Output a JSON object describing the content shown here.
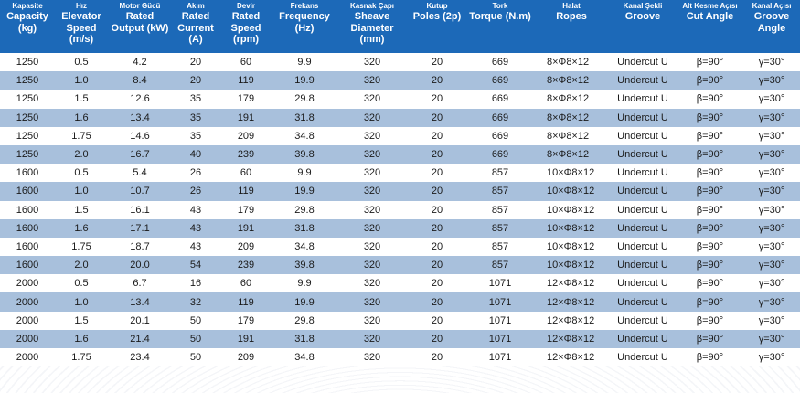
{
  "header": [
    {
      "tr": "Kapasite",
      "en": "Capacity (kg)"
    },
    {
      "tr": "Hız",
      "en": "Elevator Speed (m/s)"
    },
    {
      "tr": "Motor Gücü",
      "en": "Rated Output (kW)"
    },
    {
      "tr": "Akım",
      "en": "Rated Current (A)"
    },
    {
      "tr": "Devir",
      "en": "Rated Speed (rpm)"
    },
    {
      "tr": "Frekans",
      "en": "Frequency (Hz)"
    },
    {
      "tr": "Kasnak Çapı",
      "en": "Sheave Diameter (mm)"
    },
    {
      "tr": "Kutup",
      "en": "Poles (2p)"
    },
    {
      "tr": "Tork",
      "en": "Torque (N.m)"
    },
    {
      "tr": "Halat",
      "en": "Ropes"
    },
    {
      "tr": "Kanal Şekli",
      "en": "Groove"
    },
    {
      "tr": "Alt Kesme Açısı",
      "en": "Cut Angle"
    },
    {
      "tr": "Kanal Açısı",
      "en": "Groove Angle"
    }
  ],
  "rows": [
    [
      "1250",
      "0.5",
      "4.2",
      "20",
      "60",
      "9.9",
      "320",
      "20",
      "669",
      "8×Φ8×12",
      "Undercut U",
      "β=90°",
      "γ=30°"
    ],
    [
      "1250",
      "1.0",
      "8.4",
      "20",
      "119",
      "19.9",
      "320",
      "20",
      "669",
      "8×Φ8×12",
      "Undercut U",
      "β=90°",
      "γ=30°"
    ],
    [
      "1250",
      "1.5",
      "12.6",
      "35",
      "179",
      "29.8",
      "320",
      "20",
      "669",
      "8×Φ8×12",
      "Undercut U",
      "β=90°",
      "γ=30°"
    ],
    [
      "1250",
      "1.6",
      "13.4",
      "35",
      "191",
      "31.8",
      "320",
      "20",
      "669",
      "8×Φ8×12",
      "Undercut U",
      "β=90°",
      "γ=30°"
    ],
    [
      "1250",
      "1.75",
      "14.6",
      "35",
      "209",
      "34.8",
      "320",
      "20",
      "669",
      "8×Φ8×12",
      "Undercut U",
      "β=90°",
      "γ=30°"
    ],
    [
      "1250",
      "2.0",
      "16.7",
      "40",
      "239",
      "39.8",
      "320",
      "20",
      "669",
      "8×Φ8×12",
      "Undercut U",
      "β=90°",
      "γ=30°"
    ],
    [
      "1600",
      "0.5",
      "5.4",
      "26",
      "60",
      "9.9",
      "320",
      "20",
      "857",
      "10×Φ8×12",
      "Undercut U",
      "β=90°",
      "γ=30°"
    ],
    [
      "1600",
      "1.0",
      "10.7",
      "26",
      "119",
      "19.9",
      "320",
      "20",
      "857",
      "10×Φ8×12",
      "Undercut U",
      "β=90°",
      "γ=30°"
    ],
    [
      "1600",
      "1.5",
      "16.1",
      "43",
      "179",
      "29.8",
      "320",
      "20",
      "857",
      "10×Φ8×12",
      "Undercut U",
      "β=90°",
      "γ=30°"
    ],
    [
      "1600",
      "1.6",
      "17.1",
      "43",
      "191",
      "31.8",
      "320",
      "20",
      "857",
      "10×Φ8×12",
      "Undercut U",
      "β=90°",
      "γ=30°"
    ],
    [
      "1600",
      "1.75",
      "18.7",
      "43",
      "209",
      "34.8",
      "320",
      "20",
      "857",
      "10×Φ8×12",
      "Undercut U",
      "β=90°",
      "γ=30°"
    ],
    [
      "1600",
      "2.0",
      "20.0",
      "54",
      "239",
      "39.8",
      "320",
      "20",
      "857",
      "10×Φ8×12",
      "Undercut U",
      "β=90°",
      "γ=30°"
    ],
    [
      "2000",
      "0.5",
      "6.7",
      "16",
      "60",
      "9.9",
      "320",
      "20",
      "1071",
      "12×Φ8×12",
      "Undercut U",
      "β=90°",
      "γ=30°"
    ],
    [
      "2000",
      "1.0",
      "13.4",
      "32",
      "119",
      "19.9",
      "320",
      "20",
      "1071",
      "12×Φ8×12",
      "Undercut U",
      "β=90°",
      "γ=30°"
    ],
    [
      "2000",
      "1.5",
      "20.1",
      "50",
      "179",
      "29.8",
      "320",
      "20",
      "1071",
      "12×Φ8×12",
      "Undercut U",
      "β=90°",
      "γ=30°"
    ],
    [
      "2000",
      "1.6",
      "21.4",
      "50",
      "191",
      "31.8",
      "320",
      "20",
      "1071",
      "12×Φ8×12",
      "Undercut U",
      "β=90°",
      "γ=30°"
    ],
    [
      "2000",
      "1.75",
      "23.4",
      "50",
      "209",
      "34.8",
      "320",
      "20",
      "1071",
      "12×Φ8×12",
      "Undercut U",
      "β=90°",
      "γ=30°"
    ]
  ],
  "colors": {
    "header_bg": "#1c69b8",
    "stripe": "#a8c0dc",
    "text": "#1a1a1a"
  }
}
